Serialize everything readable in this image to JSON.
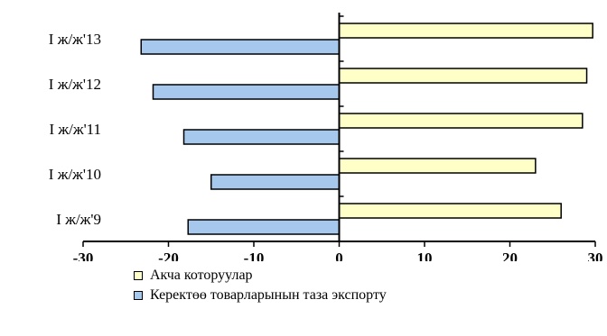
{
  "chart_data": {
    "type": "bar",
    "orientation": "horizontal",
    "categories": [
      "I ж/ж'9",
      "I ж/ж'10",
      "I ж/ж'11",
      "I ж/ж'12",
      "I ж/ж'13"
    ],
    "series": [
      {
        "name": "Акча которуулар",
        "values": [
          26,
          23,
          28.5,
          29,
          29.7
        ],
        "color": "#ffffc8"
      },
      {
        "name": "Керектөө товарларынын таза экспорту",
        "values": [
          -17.7,
          -15,
          -18.2,
          -21.8,
          -23.2
        ],
        "color": "#a6c8ec"
      }
    ],
    "xlim": [
      -30,
      30
    ],
    "xticks": [
      "-30",
      "-20",
      "-10",
      "0",
      "10",
      "20",
      "30"
    ],
    "grid": false,
    "legend_position": "bottom"
  }
}
